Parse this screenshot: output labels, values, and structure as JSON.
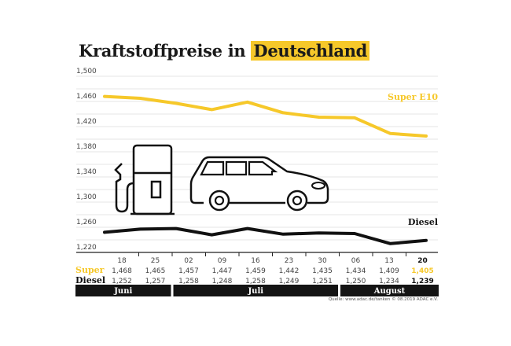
{
  "chart_data": {
    "type": "line",
    "title": "Kraftstoffpreise in",
    "title_highlight": "Deutschland",
    "y_ticks": [
      "1,500",
      "1,460",
      "1,420",
      "1,380",
      "1,340",
      "1,300",
      "1,260",
      "1,220"
    ],
    "ylim": [
      1.22,
      1.5
    ],
    "grid": true,
    "categories": [
      "18",
      "25",
      "02",
      "09",
      "16",
      "23",
      "30",
      "06",
      "13",
      "20"
    ],
    "months": [
      {
        "label": "Juni",
        "span": 2
      },
      {
        "label": "Juli",
        "span": 5
      },
      {
        "label": "August",
        "span": 3
      }
    ],
    "series": [
      {
        "name": "Super E10",
        "row_label": "Super",
        "color": "#f6c82a",
        "values": [
          1.468,
          1.465,
          1.457,
          1.447,
          1.459,
          1.442,
          1.435,
          1.434,
          1.409,
          1.405
        ],
        "labels": [
          "1,468",
          "1,465",
          "1,457",
          "1,447",
          "1,459",
          "1,442",
          "1,435",
          "1,434",
          "1,409",
          "1,405"
        ]
      },
      {
        "name": "Diesel",
        "row_label": "Diesel",
        "color": "#111111",
        "values": [
          1.252,
          1.257,
          1.258,
          1.248,
          1.258,
          1.249,
          1.251,
          1.25,
          1.234,
          1.239
        ],
        "labels": [
          "1,252",
          "1,257",
          "1,258",
          "1,248",
          "1,258",
          "1,249",
          "1,251",
          "1,250",
          "1,234",
          "1,239"
        ]
      }
    ],
    "source": "Quelle: www.adac.de/tanken   © 08.2019  ADAC e.V.",
    "icons": [
      "fuel-pump-icon",
      "car-icon"
    ]
  }
}
